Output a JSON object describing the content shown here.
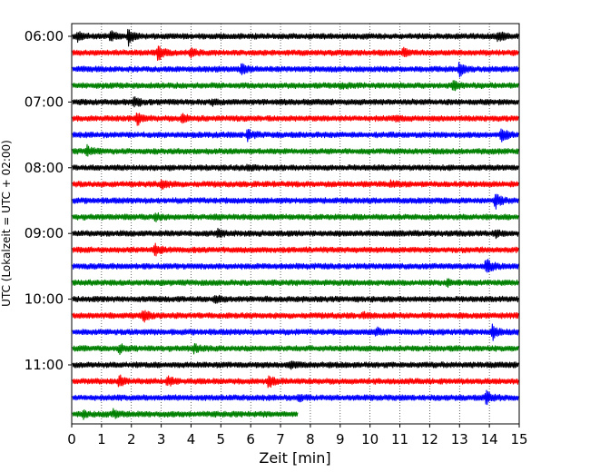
{
  "chart_data": {
    "type": "line",
    "xlabel": "Zeit  [min]",
    "ylabel": "UTC (Lokalzeit = UTC + 02:00)",
    "xlim": [
      0,
      15
    ],
    "x_ticks": [
      0,
      1,
      2,
      3,
      4,
      5,
      6,
      7,
      8,
      9,
      10,
      11,
      12,
      13,
      14,
      15
    ],
    "y_tick_labels": [
      "06:00",
      "07:00",
      "08:00",
      "09:00",
      "10:00",
      "11:00"
    ],
    "grid": "vertical dotted at each minute",
    "row_minutes": 15,
    "trace_colors": [
      "#000000",
      "#ff0000",
      "#0000ff",
      "#008000"
    ],
    "traces": [
      {
        "start": "06:00",
        "color": "black",
        "duration": 15,
        "events": [
          [
            0.2,
            0.6
          ],
          [
            1.3,
            0.8
          ],
          [
            1.9,
            1.0
          ],
          [
            14.3,
            0.7
          ]
        ]
      },
      {
        "start": "06:15",
        "color": "red",
        "duration": 15,
        "events": [
          [
            2.9,
            1.0
          ],
          [
            4.0,
            0.5
          ],
          [
            11.1,
            0.4
          ]
        ]
      },
      {
        "start": "06:30",
        "color": "blue",
        "duration": 15,
        "events": [
          [
            5.7,
            0.7
          ],
          [
            13.0,
            1.0
          ]
        ]
      },
      {
        "start": "06:45",
        "color": "green",
        "duration": 15,
        "events": [
          [
            9.0,
            0.3
          ],
          [
            12.8,
            0.5
          ]
        ]
      },
      {
        "start": "07:00",
        "color": "black",
        "duration": 15,
        "events": [
          [
            2.1,
            0.8
          ],
          [
            4.7,
            0.3
          ]
        ]
      },
      {
        "start": "07:15",
        "color": "red",
        "duration": 15,
        "events": [
          [
            2.2,
            0.8
          ],
          [
            3.7,
            0.6
          ],
          [
            10.9,
            0.4
          ]
        ]
      },
      {
        "start": "07:30",
        "color": "blue",
        "duration": 15,
        "events": [
          [
            5.9,
            0.7
          ],
          [
            14.4,
            0.9
          ]
        ]
      },
      {
        "start": "07:45",
        "color": "green",
        "duration": 15,
        "events": [
          [
            0.5,
            0.7
          ]
        ]
      },
      {
        "start": "08:00",
        "color": "black",
        "duration": 15,
        "events": [
          [
            5.9,
            0.4
          ]
        ]
      },
      {
        "start": "08:15",
        "color": "red",
        "duration": 15,
        "events": [
          [
            3.0,
            0.7
          ],
          [
            10.7,
            0.3
          ]
        ]
      },
      {
        "start": "08:30",
        "color": "blue",
        "duration": 15,
        "events": [
          [
            14.2,
            1.0
          ]
        ]
      },
      {
        "start": "08:45",
        "color": "green",
        "duration": 15,
        "events": [
          [
            2.8,
            0.5
          ],
          [
            4.8,
            0.3
          ]
        ]
      },
      {
        "start": "09:00",
        "color": "black",
        "duration": 15,
        "events": [
          [
            4.9,
            0.4
          ],
          [
            14.2,
            0.4
          ]
        ]
      },
      {
        "start": "09:15",
        "color": "red",
        "duration": 15,
        "events": [
          [
            2.8,
            0.8
          ]
        ]
      },
      {
        "start": "09:30",
        "color": "blue",
        "duration": 15,
        "events": [
          [
            13.9,
            1.0
          ]
        ]
      },
      {
        "start": "09:45",
        "color": "green",
        "duration": 15,
        "events": [
          [
            12.6,
            0.3
          ]
        ]
      },
      {
        "start": "10:00",
        "color": "black",
        "duration": 15,
        "events": [
          [
            4.8,
            0.5
          ]
        ]
      },
      {
        "start": "10:15",
        "color": "red",
        "duration": 15,
        "events": [
          [
            2.4,
            0.9
          ],
          [
            9.8,
            0.3
          ]
        ]
      },
      {
        "start": "10:30",
        "color": "blue",
        "duration": 15,
        "events": [
          [
            10.2,
            0.5
          ],
          [
            14.1,
            0.9
          ]
        ]
      },
      {
        "start": "10:45",
        "color": "green",
        "duration": 15,
        "events": [
          [
            1.6,
            0.6
          ],
          [
            4.1,
            0.5
          ]
        ]
      },
      {
        "start": "11:00",
        "color": "black",
        "duration": 15,
        "events": [
          [
            7.3,
            0.5
          ]
        ]
      },
      {
        "start": "11:15",
        "color": "red",
        "duration": 15,
        "events": [
          [
            1.6,
            0.8
          ],
          [
            3.2,
            0.6
          ],
          [
            6.6,
            0.8
          ]
        ]
      },
      {
        "start": "11:30",
        "color": "blue",
        "duration": 15,
        "events": [
          [
            7.6,
            0.4
          ],
          [
            13.9,
            1.0
          ]
        ]
      },
      {
        "start": "11:45",
        "color": "green",
        "duration": 7.6,
        "events": [
          [
            0.4,
            0.4
          ],
          [
            1.4,
            0.4
          ]
        ]
      }
    ]
  }
}
